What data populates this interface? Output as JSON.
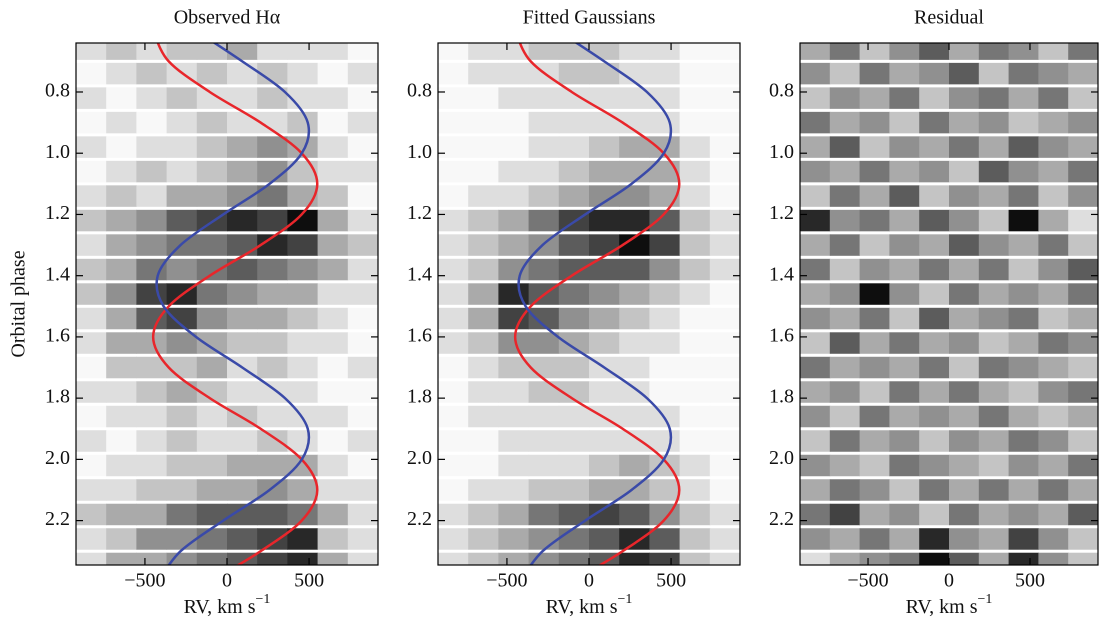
{
  "chart_data": [
    {
      "type": "heatmap",
      "title": "Observed Hα",
      "ylabel": "Orbital phase",
      "xlabel": {
        "text": "RV, km s",
        "sup": "−1"
      },
      "xlim": [
        -920,
        920
      ],
      "ylim": [
        0.64,
        2.345
      ],
      "y_inverted": true,
      "xticks": [
        {
          "value": -500,
          "label": "−500"
        },
        0,
        500
      ],
      "yticks": [
        0.8,
        {
          "value": 1.0,
          "label": "1.0"
        },
        1.2,
        1.4,
        1.6,
        1.8,
        {
          "value": 2.0,
          "label": "2.0"
        },
        2.2
      ],
      "x_edges": [
        -920,
        -736,
        -552,
        -368,
        -184,
        0,
        184,
        368,
        552,
        736,
        920
      ],
      "rows": [
        0.66,
        0.74,
        0.82,
        0.9,
        0.98,
        1.06,
        1.14,
        1.22,
        1.3,
        1.38,
        1.46,
        1.54,
        1.62,
        1.7,
        1.78,
        1.86,
        1.94,
        2.02,
        2.1,
        2.18,
        2.26,
        2.34
      ],
      "values": [
        [
          1,
          2,
          1,
          2,
          2,
          3,
          1,
          1,
          1,
          0
        ],
        [
          0,
          1,
          2,
          1,
          2,
          1,
          2,
          1,
          0,
          1
        ],
        [
          1,
          0,
          1,
          2,
          1,
          1,
          2,
          1,
          1,
          0
        ],
        [
          0,
          1,
          0,
          1,
          2,
          1,
          1,
          2,
          0,
          1
        ],
        [
          1,
          0,
          1,
          1,
          2,
          3,
          4,
          3,
          1,
          0
        ],
        [
          0,
          1,
          2,
          1,
          2,
          3,
          4,
          2,
          1,
          1
        ],
        [
          1,
          2,
          1,
          3,
          3,
          4,
          5,
          3,
          2,
          0
        ],
        [
          2,
          3,
          4,
          6,
          7,
          8,
          7,
          9,
          3,
          1
        ],
        [
          1,
          3,
          4,
          5,
          5,
          6,
          8,
          7,
          3,
          2
        ],
        [
          2,
          3,
          5,
          4,
          5,
          6,
          5,
          4,
          3,
          1
        ],
        [
          2,
          4,
          7,
          8,
          5,
          4,
          3,
          3,
          1,
          1
        ],
        [
          1,
          3,
          6,
          7,
          4,
          3,
          3,
          2,
          1,
          0
        ],
        [
          1,
          3,
          3,
          4,
          3,
          2,
          2,
          1,
          1,
          0
        ],
        [
          0,
          2,
          2,
          2,
          3,
          1,
          2,
          1,
          0,
          1
        ],
        [
          1,
          1,
          2,
          3,
          2,
          1,
          1,
          1,
          0,
          0
        ],
        [
          0,
          1,
          1,
          2,
          1,
          2,
          1,
          1,
          1,
          0
        ],
        [
          1,
          0,
          1,
          2,
          1,
          1,
          2,
          1,
          0,
          1
        ],
        [
          0,
          1,
          1,
          2,
          2,
          3,
          3,
          3,
          1,
          0
        ],
        [
          1,
          1,
          2,
          2,
          3,
          3,
          4,
          3,
          1,
          1
        ],
        [
          2,
          3,
          3,
          5,
          6,
          6,
          6,
          5,
          3,
          1
        ],
        [
          1,
          2,
          4,
          4,
          5,
          6,
          7,
          8,
          2,
          1
        ],
        [
          1,
          3,
          3,
          4,
          5,
          6,
          7,
          8,
          3,
          1
        ]
      ],
      "x": [
        0.6,
        0.7,
        0.8,
        0.9,
        1.0,
        1.1,
        1.2,
        1.3,
        1.4,
        1.5,
        1.6,
        1.7,
        1.8,
        1.9,
        2.0,
        2.1,
        2.2,
        2.3,
        2.4
      ],
      "series": [
        {
          "color": "#e8262b",
          "values": [
            -450,
            -355,
            -105,
            205,
            455,
            550,
            455,
            205,
            -105,
            -355,
            -450,
            -355,
            -105,
            205,
            455,
            550,
            455,
            205,
            -105
          ]
        },
        {
          "color": "#3a4aa8",
          "values": [
            -189,
            93,
            353,
            492,
            456,
            259,
            -23,
            -283,
            -422,
            -386,
            -189,
            93,
            353,
            492,
            456,
            259,
            -23,
            -283,
            -422
          ]
        }
      ]
    },
    {
      "type": "heatmap",
      "title": "Fitted Gaussians",
      "xlabel": {
        "text": "RV, km s",
        "sup": "−1"
      },
      "xlim": [
        -920,
        920
      ],
      "ylim": [
        0.64,
        2.345
      ],
      "y_inverted": true,
      "xticks": [
        {
          "value": -500,
          "label": "−500"
        },
        0,
        500
      ],
      "yticks": [
        0.8,
        {
          "value": 1.0,
          "label": "1.0"
        },
        1.2,
        1.4,
        1.6,
        1.8,
        {
          "value": 2.0,
          "label": "2.0"
        },
        2.2
      ],
      "x_edges": [
        -920,
        -736,
        -552,
        -368,
        -184,
        0,
        184,
        368,
        552,
        736,
        920
      ],
      "rows": [
        0.66,
        0.74,
        0.82,
        0.9,
        0.98,
        1.06,
        1.14,
        1.22,
        1.3,
        1.38,
        1.46,
        1.54,
        1.62,
        1.7,
        1.78,
        1.86,
        1.94,
        2.02,
        2.1,
        2.18,
        2.26,
        2.34
      ],
      "values": [
        [
          0,
          1,
          1,
          2,
          2,
          2,
          1,
          1,
          0,
          0
        ],
        [
          0,
          1,
          1,
          1,
          2,
          2,
          1,
          1,
          0,
          0
        ],
        [
          0,
          0,
          1,
          1,
          1,
          1,
          1,
          1,
          0,
          0
        ],
        [
          0,
          0,
          0,
          1,
          1,
          1,
          1,
          1,
          0,
          0
        ],
        [
          0,
          0,
          0,
          1,
          1,
          2,
          3,
          3,
          1,
          0
        ],
        [
          0,
          0,
          1,
          1,
          2,
          3,
          3,
          3,
          1,
          0
        ],
        [
          0,
          1,
          1,
          2,
          3,
          4,
          4,
          3,
          1,
          0
        ],
        [
          1,
          2,
          3,
          5,
          7,
          8,
          8,
          6,
          2,
          1
        ],
        [
          1,
          2,
          3,
          4,
          6,
          7,
          9,
          7,
          2,
          1
        ],
        [
          1,
          2,
          4,
          5,
          6,
          6,
          6,
          4,
          2,
          1
        ],
        [
          1,
          3,
          8,
          6,
          5,
          4,
          3,
          2,
          1,
          0
        ],
        [
          1,
          3,
          7,
          6,
          4,
          3,
          2,
          1,
          0,
          0
        ],
        [
          1,
          2,
          4,
          4,
          3,
          2,
          1,
          1,
          0,
          0
        ],
        [
          0,
          1,
          2,
          2,
          2,
          1,
          1,
          0,
          0,
          0
        ],
        [
          0,
          1,
          1,
          2,
          2,
          1,
          1,
          0,
          0,
          0
        ],
        [
          0,
          1,
          1,
          1,
          1,
          1,
          1,
          1,
          0,
          0
        ],
        [
          0,
          0,
          1,
          1,
          1,
          1,
          1,
          1,
          0,
          0
        ],
        [
          0,
          0,
          1,
          1,
          1,
          2,
          3,
          2,
          1,
          0
        ],
        [
          0,
          1,
          1,
          2,
          2,
          3,
          3,
          2,
          1,
          0
        ],
        [
          1,
          2,
          3,
          5,
          6,
          7,
          6,
          4,
          2,
          1
        ],
        [
          1,
          2,
          3,
          4,
          5,
          6,
          8,
          6,
          2,
          1
        ],
        [
          1,
          2,
          3,
          4,
          5,
          6,
          8,
          7,
          2,
          1
        ]
      ],
      "x": [
        0.6,
        0.7,
        0.8,
        0.9,
        1.0,
        1.1,
        1.2,
        1.3,
        1.4,
        1.5,
        1.6,
        1.7,
        1.8,
        1.9,
        2.0,
        2.1,
        2.2,
        2.3,
        2.4
      ],
      "series": [
        {
          "color": "#e8262b",
          "values": [
            -450,
            -355,
            -105,
            205,
            455,
            550,
            455,
            205,
            -105,
            -355,
            -450,
            -355,
            -105,
            205,
            455,
            550,
            455,
            205,
            -105
          ]
        },
        {
          "color": "#3a4aa8",
          "values": [
            -189,
            93,
            353,
            492,
            456,
            259,
            -23,
            -283,
            -422,
            -386,
            -189,
            93,
            353,
            492,
            456,
            259,
            -23,
            -283,
            -422
          ]
        }
      ]
    },
    {
      "type": "heatmap",
      "title": "Residual",
      "xlabel": {
        "text": "RV, km s",
        "sup": "−1"
      },
      "xlim": [
        -920,
        920
      ],
      "ylim": [
        0.64,
        2.345
      ],
      "y_inverted": true,
      "xticks": [
        {
          "value": -500,
          "label": "−500"
        },
        0,
        500
      ],
      "yticks": [
        0.8,
        {
          "value": 1.0,
          "label": "1.0"
        },
        1.2,
        1.4,
        1.6,
        1.8,
        {
          "value": 2.0,
          "label": "2.0"
        },
        2.2
      ],
      "x_edges": [
        -920,
        -736,
        -552,
        -368,
        -184,
        0,
        184,
        368,
        552,
        736,
        920
      ],
      "rows": [
        0.66,
        0.74,
        0.82,
        0.9,
        0.98,
        1.06,
        1.14,
        1.22,
        1.3,
        1.38,
        1.46,
        1.54,
        1.62,
        1.7,
        1.78,
        1.86,
        1.94,
        2.02,
        2.1,
        2.18,
        2.26,
        2.34
      ],
      "values": [
        [
          3,
          5,
          2,
          4,
          6,
          3,
          5,
          4,
          2,
          5
        ],
        [
          4,
          2,
          5,
          3,
          4,
          6,
          2,
          5,
          4,
          3
        ],
        [
          2,
          4,
          3,
          5,
          2,
          4,
          5,
          3,
          5,
          2
        ],
        [
          5,
          3,
          4,
          2,
          5,
          3,
          4,
          2,
          3,
          4
        ],
        [
          3,
          6,
          2,
          4,
          3,
          5,
          3,
          6,
          4,
          3
        ],
        [
          4,
          3,
          5,
          3,
          4,
          2,
          6,
          4,
          3,
          5
        ],
        [
          2,
          5,
          3,
          6,
          2,
          4,
          3,
          5,
          2,
          4
        ],
        [
          8,
          4,
          5,
          3,
          6,
          4,
          2,
          9,
          3,
          1
        ],
        [
          3,
          5,
          2,
          4,
          3,
          6,
          4,
          3,
          5,
          2
        ],
        [
          5,
          2,
          4,
          3,
          5,
          3,
          5,
          2,
          4,
          6
        ],
        [
          3,
          4,
          9,
          4,
          2,
          5,
          3,
          4,
          3,
          5
        ],
        [
          4,
          3,
          5,
          2,
          6,
          3,
          4,
          5,
          2,
          3
        ],
        [
          2,
          6,
          3,
          5,
          3,
          4,
          2,
          3,
          5,
          4
        ],
        [
          5,
          3,
          4,
          3,
          5,
          2,
          5,
          4,
          3,
          2
        ],
        [
          3,
          4,
          2,
          5,
          3,
          5,
          3,
          2,
          4,
          5
        ],
        [
          4,
          2,
          5,
          3,
          4,
          3,
          5,
          3,
          2,
          3
        ],
        [
          2,
          5,
          3,
          4,
          2,
          4,
          3,
          5,
          4,
          2
        ],
        [
          4,
          3,
          2,
          5,
          4,
          3,
          2,
          4,
          3,
          5
        ],
        [
          3,
          5,
          4,
          2,
          5,
          3,
          5,
          3,
          5,
          3
        ],
        [
          5,
          7,
          3,
          4,
          2,
          5,
          3,
          4,
          3,
          6
        ],
        [
          4,
          3,
          5,
          3,
          8,
          4,
          3,
          7,
          4,
          2
        ],
        [
          1,
          3,
          4,
          5,
          9,
          6,
          3,
          8,
          4,
          2
        ]
      ]
    }
  ]
}
